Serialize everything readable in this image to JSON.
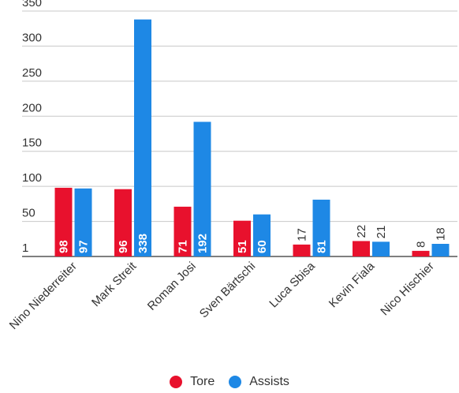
{
  "chart_data": {
    "type": "bar",
    "categories": [
      "Nino Niederreiter",
      "Mark Streit",
      "Roman Josi",
      "Sven Bärtschi",
      "Luca Sbisa",
      "Kevin Fiala",
      "Nico Hischier"
    ],
    "series": [
      {
        "name": "Tore",
        "color": "#e8112d",
        "values": [
          98,
          96,
          71,
          51,
          17,
          22,
          8
        ]
      },
      {
        "name": "Assists",
        "color": "#1e88e5",
        "values": [
          97,
          338,
          192,
          60,
          81,
          21,
          18
        ]
      }
    ],
    "y_ticks": [
      {
        "label": "1",
        "value": 1
      },
      {
        "label": "50",
        "value": 50
      },
      {
        "label": "100",
        "value": 100
      },
      {
        "label": "150",
        "value": 150
      },
      {
        "label": "200",
        "value": 200
      },
      {
        "label": "250",
        "value": 250
      },
      {
        "label": "300",
        "value": 300
      },
      {
        "label": "350",
        "value": 350
      }
    ],
    "ylim": [
      0,
      350
    ],
    "grid": true,
    "legend_position": "bottom-center"
  }
}
